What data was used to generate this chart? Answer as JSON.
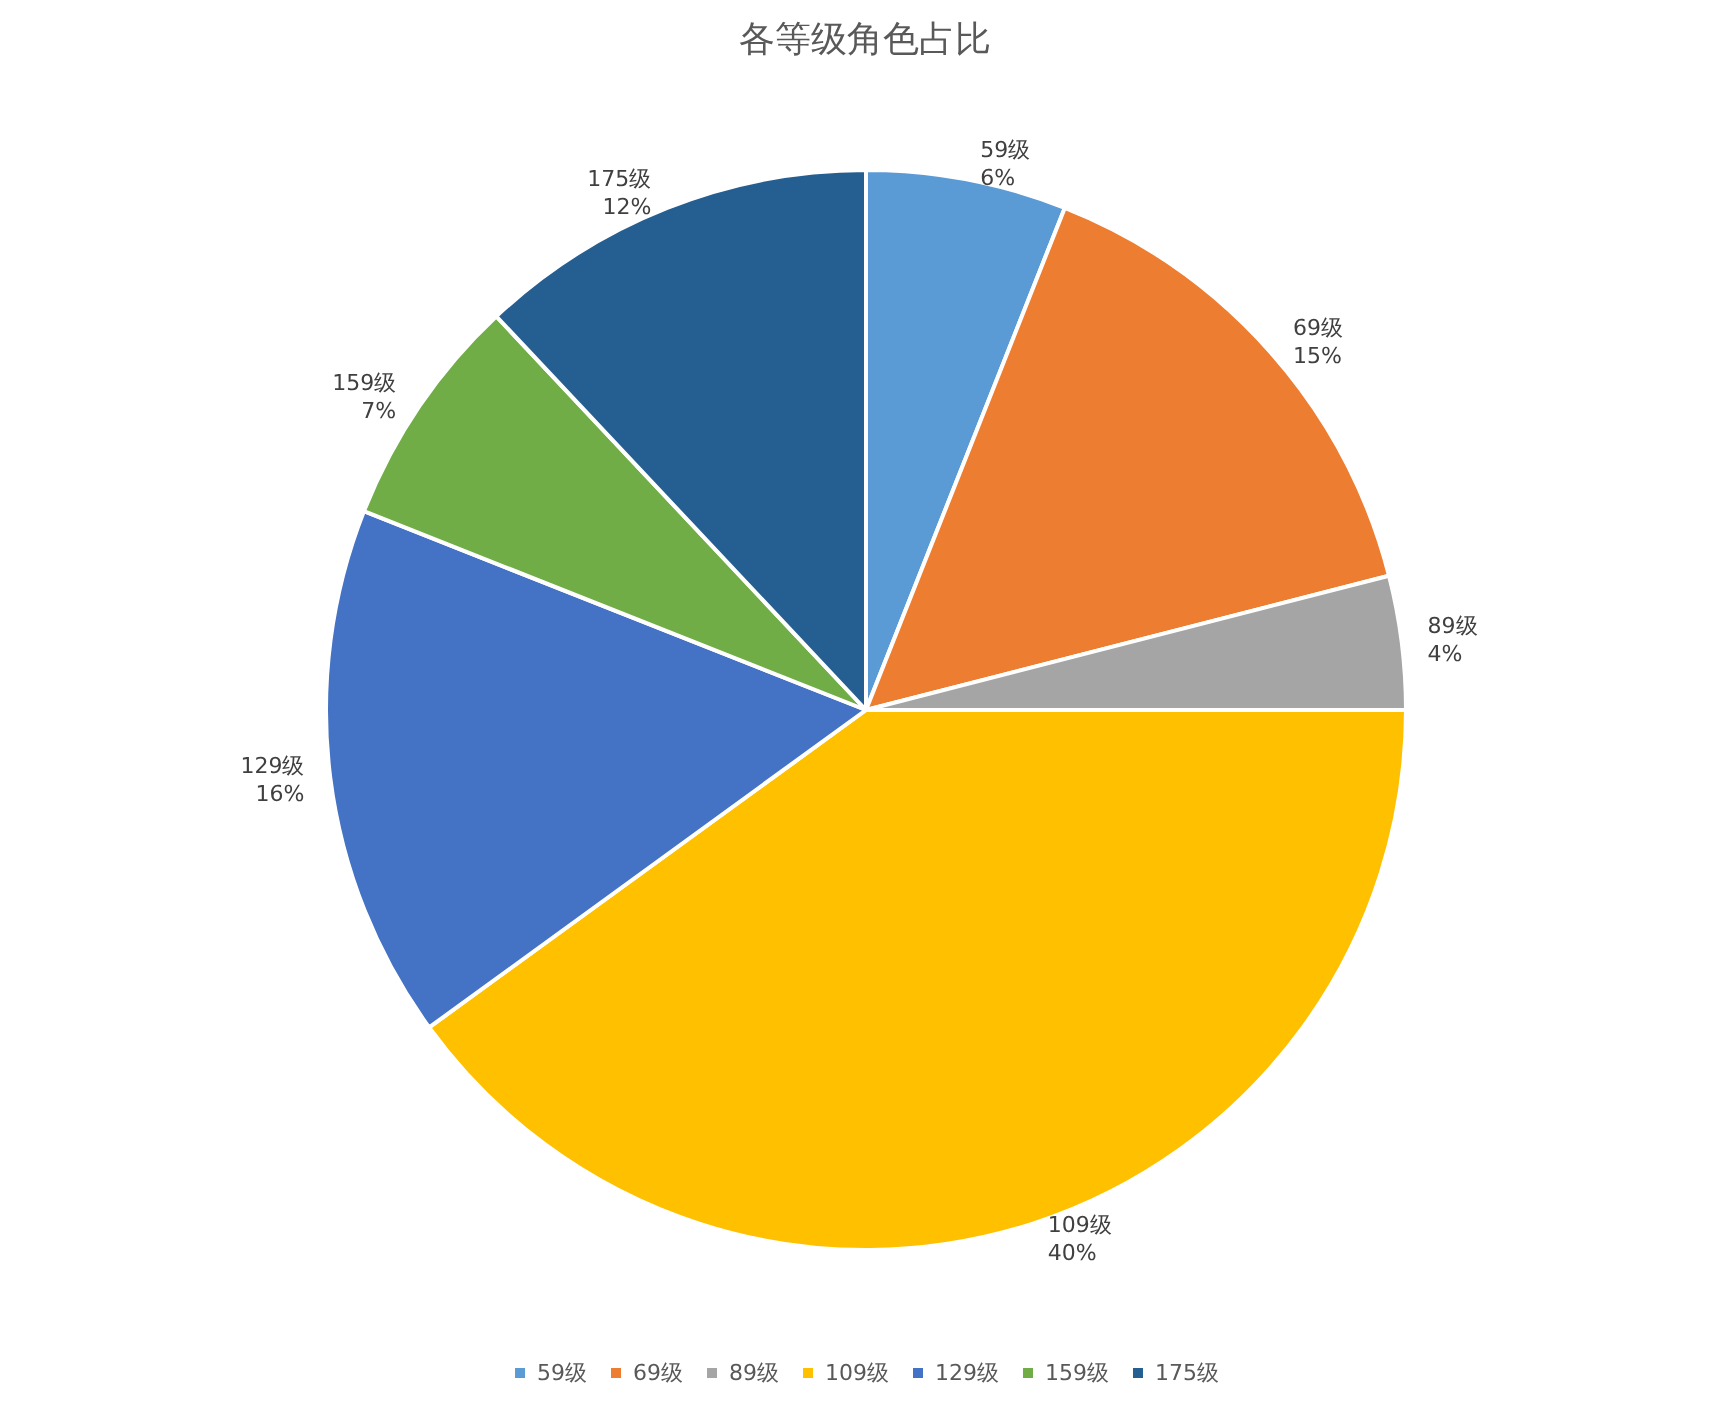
{
  "chart_data": {
    "type": "pie",
    "title": "各等级角色占比",
    "categories": [
      "59级",
      "69级",
      "89级",
      "109级",
      "129级",
      "159级",
      "175级"
    ],
    "values": [
      6,
      15,
      4,
      40,
      16,
      7,
      12
    ],
    "colors": [
      "#5b9bd5",
      "#ed7d31",
      "#a5a5a5",
      "#ffc000",
      "#4472c4",
      "#70ad47",
      "#255e91"
    ],
    "value_labels": [
      "6%",
      "15%",
      "4%",
      "40%",
      "16%",
      "7%",
      "12%"
    ],
    "legend": "bottom"
  }
}
